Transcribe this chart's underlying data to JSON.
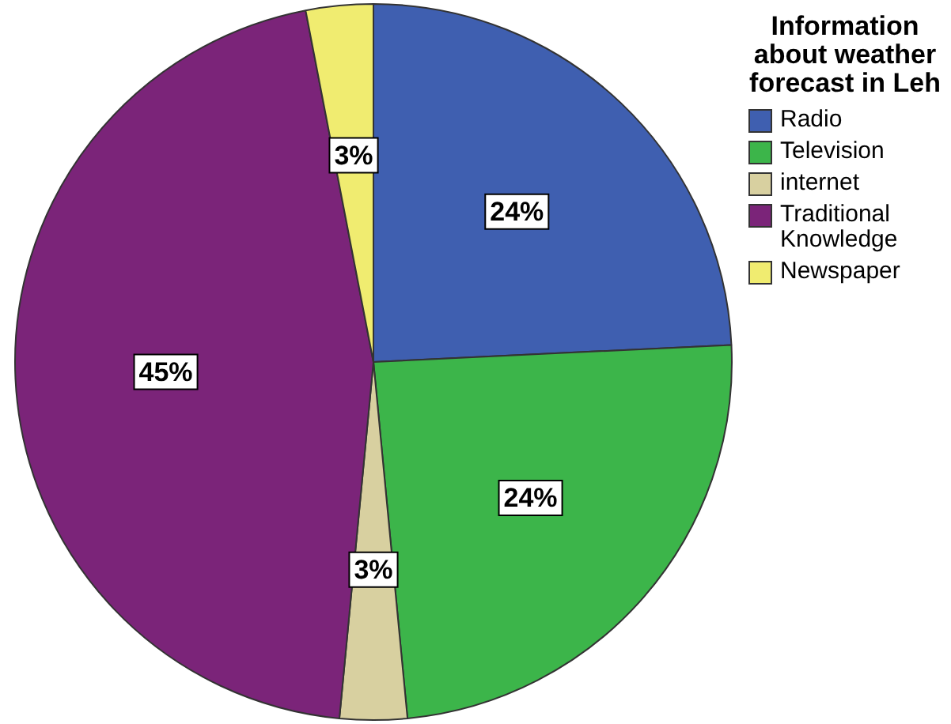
{
  "chart_data": {
    "type": "pie",
    "legend_title": "Information about weather forecast in Leh",
    "legend": "right",
    "categories": [
      "Radio",
      "Television",
      "internet",
      "Traditional Knowledge",
      "Newspaper"
    ],
    "values": [
      24,
      24,
      3,
      45,
      3
    ],
    "value_labels": [
      "24%",
      "24%",
      "3%",
      "45%",
      "3%"
    ],
    "colors": [
      "#3f5fb0",
      "#3cb54a",
      "#d8d0a0",
      "#7b2479",
      "#f0ec70"
    ]
  }
}
